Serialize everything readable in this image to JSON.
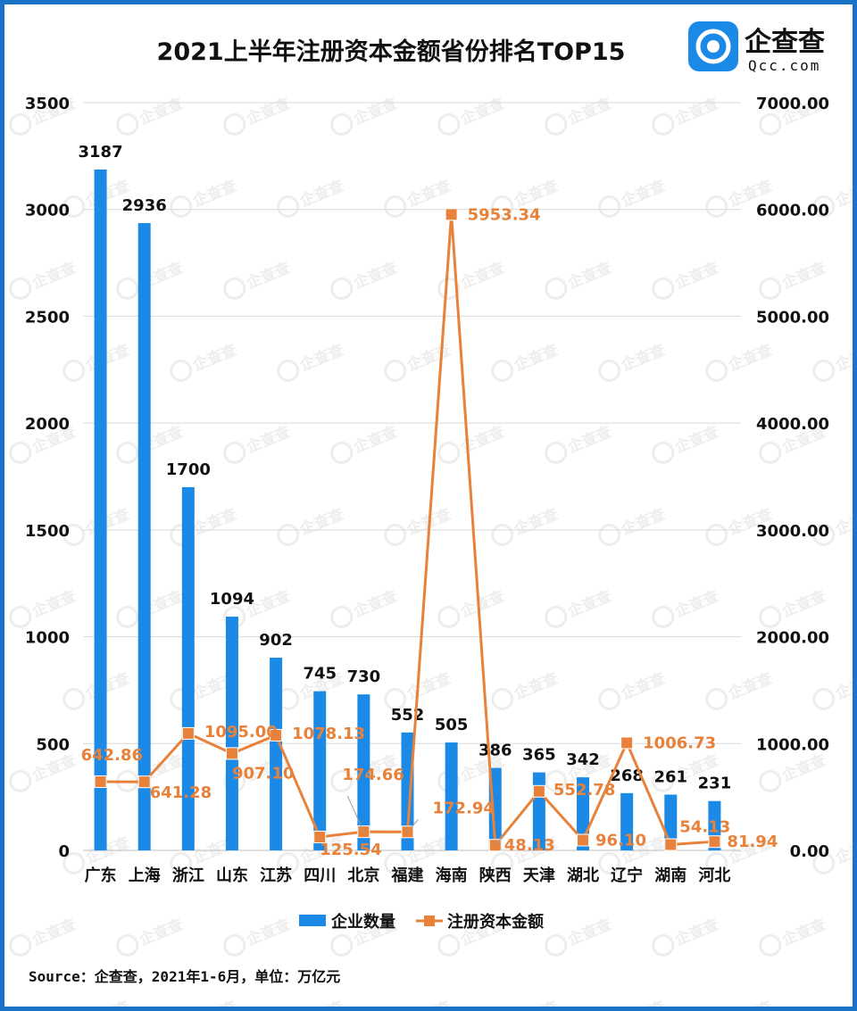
{
  "chart_data": {
    "type": "bar",
    "title": "2021上半年注册资本金额省份排名TOP15",
    "categories": [
      "广东",
      "上海",
      "浙江",
      "山东",
      "江苏",
      "四川",
      "北京",
      "福建",
      "海南",
      "陕西",
      "天津",
      "湖北",
      "辽宁",
      "湖南",
      "河北"
    ],
    "series": [
      {
        "name": "企业数量",
        "type": "bar",
        "axis": "left",
        "color": "#1b8ae6",
        "values": [
          3187,
          2936,
          1700,
          1094,
          902,
          745,
          730,
          552,
          505,
          386,
          365,
          342,
          268,
          261,
          231
        ]
      },
      {
        "name": "注册资本金额",
        "type": "line",
        "axis": "right",
        "color": "#e8823a",
        "values": [
          642.86,
          641.28,
          1095.0,
          907.1,
          1078.13,
          125.54,
          174.66,
          172.94,
          5953.34,
          48.13,
          552.78,
          96.1,
          1006.73,
          54.13,
          81.94
        ],
        "labels": [
          "642.86",
          "641.28",
          "1095.00",
          "907.10",
          "1078.13",
          "125.54",
          "174.66",
          "172.94",
          "5953.34",
          "48.13",
          "552.78",
          "96.10",
          "1006.73",
          "54.13",
          "81.94"
        ]
      }
    ],
    "y_left": {
      "ylim": [
        0,
        3500
      ],
      "ticks": [
        "0",
        "500",
        "1000",
        "1500",
        "2000",
        "2500",
        "3000",
        "3500"
      ]
    },
    "y_right": {
      "ylim": [
        0,
        7000
      ],
      "ticks": [
        "0.00",
        "1000.00",
        "2000.00",
        "3000.00",
        "4000.00",
        "5000.00",
        "6000.00",
        "7000.00"
      ]
    },
    "grid": true,
    "legend": "bottom"
  },
  "source": "Source：企查查，2021年1-6月，单位：万亿元",
  "logo": {
    "name": "企查查",
    "domain": "Qcc.com",
    "color": "#1b8ae6"
  }
}
